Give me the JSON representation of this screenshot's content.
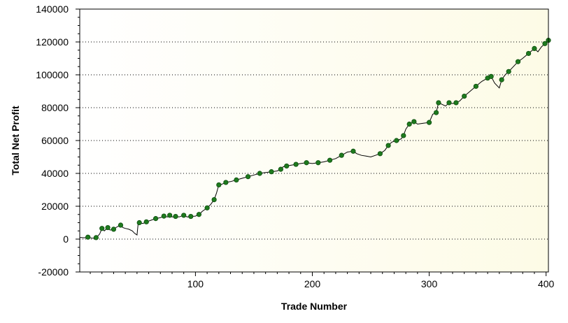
{
  "chart_data": {
    "type": "line",
    "xlabel": "Trade Number",
    "ylabel": "Total Net Profit",
    "xlim": [
      1,
      402
    ],
    "ylim": [
      -20000,
      140000
    ],
    "xticks": [
      100,
      200,
      300,
      400
    ],
    "yticks": [
      -20000,
      0,
      20000,
      40000,
      60000,
      80000,
      100000,
      120000,
      140000
    ],
    "ytick_labels": [
      "-20000",
      "0",
      "20000",
      "40000",
      "60000",
      "80000",
      "100000",
      "120000",
      "140000"
    ],
    "xtick_labels": [
      "100",
      "200",
      "300",
      "400"
    ],
    "grid": "horizontal dotted",
    "background_gradient": [
      "#ffffff",
      "#fdfbe6"
    ],
    "line_color": "#000000",
    "marker_color": "#1e7a1e",
    "series": [
      {
        "x": [
          1,
          5,
          8,
          12,
          15,
          18,
          20,
          22,
          25,
          27,
          30,
          33,
          36,
          38,
          40,
          43,
          46,
          48,
          50,
          51,
          52,
          55,
          58,
          62,
          66,
          70,
          73,
          76,
          78,
          80,
          83,
          86,
          90,
          93,
          96,
          100,
          103,
          106,
          110,
          113,
          116,
          118,
          120,
          123,
          126,
          130,
          135,
          140,
          145,
          150,
          155,
          160,
          165,
          170,
          173,
          175,
          178,
          182,
          186,
          190,
          195,
          200,
          205,
          210,
          215,
          220,
          225,
          230,
          235,
          238,
          242,
          246,
          250,
          254,
          258,
          262,
          265,
          268,
          272,
          276,
          278,
          280,
          283,
          287,
          290,
          295,
          300,
          303,
          306,
          308,
          311,
          314,
          317,
          320,
          323,
          326,
          330,
          335,
          340,
          345,
          350,
          353,
          356,
          360,
          362,
          365,
          368,
          372,
          376,
          380,
          385,
          390,
          393,
          396,
          399,
          402
        ],
        "y": [
          1000,
          800,
          1200,
          500,
          900,
          3000,
          6500,
          5000,
          7000,
          5500,
          6000,
          7500,
          8500,
          7000,
          6500,
          6000,
          5000,
          3500,
          2500,
          9500,
          10000,
          9500,
          10500,
          11500,
          12500,
          13000,
          14000,
          13500,
          14500,
          13500,
          13800,
          13500,
          14500,
          13500,
          13800,
          14000,
          15000,
          17000,
          19000,
          21000,
          24000,
          28000,
          33000,
          33500,
          34500,
          35000,
          36000,
          37000,
          38000,
          39000,
          40000,
          40500,
          41000,
          41500,
          42500,
          44000,
          44500,
          45000,
          45500,
          46000,
          46500,
          46000,
          46500,
          47000,
          48000,
          49000,
          51000,
          53000,
          53500,
          52000,
          51000,
          50500,
          50000,
          51000,
          52000,
          54000,
          57000,
          59000,
          60000,
          61000,
          63000,
          67000,
          70000,
          71500,
          70000,
          70500,
          71000,
          76000,
          77000,
          83000,
          82000,
          81000,
          83000,
          82500,
          83000,
          84000,
          87000,
          90000,
          93000,
          96000,
          98000,
          99000,
          95000,
          92000,
          97000,
          100000,
          102000,
          105000,
          108000,
          110000,
          113000,
          116000,
          114000,
          117000,
          119000,
          121000
        ]
      }
    ]
  }
}
